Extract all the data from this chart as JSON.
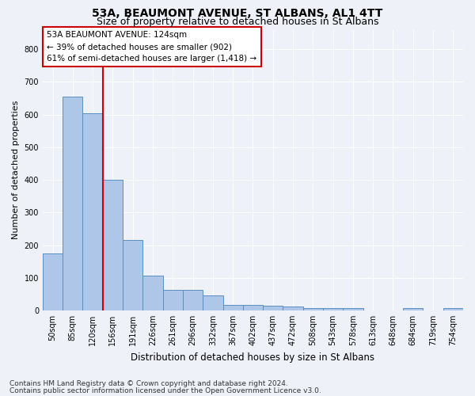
{
  "title": "53A, BEAUMONT AVENUE, ST ALBANS, AL1 4TT",
  "subtitle": "Size of property relative to detached houses in St Albans",
  "xlabel": "Distribution of detached houses by size in St Albans",
  "ylabel": "Number of detached properties",
  "bar_labels": [
    "50sqm",
    "85sqm",
    "120sqm",
    "156sqm",
    "191sqm",
    "226sqm",
    "261sqm",
    "296sqm",
    "332sqm",
    "367sqm",
    "402sqm",
    "437sqm",
    "472sqm",
    "508sqm",
    "543sqm",
    "578sqm",
    "613sqm",
    "648sqm",
    "684sqm",
    "719sqm",
    "754sqm"
  ],
  "bar_values": [
    175,
    655,
    605,
    400,
    215,
    107,
    63,
    63,
    45,
    18,
    17,
    15,
    13,
    7,
    7,
    7,
    0,
    0,
    8,
    0,
    7
  ],
  "bar_color": "#aec6e8",
  "bar_edge_color": "#5a8fc0",
  "vline_x_idx": 2,
  "vline_color": "#cc0000",
  "ylim": [
    0,
    860
  ],
  "yticks": [
    0,
    100,
    200,
    300,
    400,
    500,
    600,
    700,
    800
  ],
  "annotation_line1": "53A BEAUMONT AVENUE: 124sqm",
  "annotation_line2": "← 39% of detached houses are smaller (902)",
  "annotation_line3": "61% of semi-detached houses are larger (1,418) →",
  "annotation_box_color": "#cc0000",
  "footnote1": "Contains HM Land Registry data © Crown copyright and database right 2024.",
  "footnote2": "Contains public sector information licensed under the Open Government Licence v3.0.",
  "bg_color": "#eef2f8",
  "plot_bg_color": "#eef2f8",
  "grid_color": "#ffffff",
  "title_fontsize": 10,
  "subtitle_fontsize": 9,
  "annot_fontsize": 7.5,
  "tick_fontsize": 7,
  "ylabel_fontsize": 8,
  "xlabel_fontsize": 8.5,
  "footnote_fontsize": 6.5
}
